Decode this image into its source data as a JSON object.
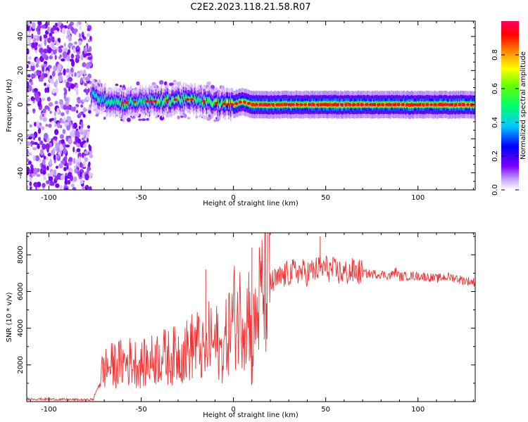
{
  "page_title": "C2E2.2023.118.21.58.R07",
  "chart_data": [
    {
      "type": "heatmap",
      "title": "C2E2.2023.118.21.58.R07",
      "xlabel": "Height of straight line (km)",
      "ylabel": "Frequency (Hz)",
      "xlim": [
        -112,
        131
      ],
      "ylim": [
        -50,
        49
      ],
      "x_ticks": [
        -100,
        -50,
        0,
        50,
        100
      ],
      "y_ticks": [
        -40,
        -20,
        0,
        20,
        40
      ],
      "colorbar": {
        "label": "Normalized spectral amplitude",
        "range": [
          0,
          1
        ],
        "ticks": [
          0.0,
          0.2,
          0.4,
          0.6,
          0.8
        ],
        "colors": [
          "#ffffff",
          "#d8b8ff",
          "#7b00ff",
          "#0000ff",
          "#00ccff",
          "#00ff66",
          "#66ff00",
          "#ffff00",
          "#ff8800",
          "#ff0000",
          "#ff0066"
        ]
      },
      "ridge": [
        {
          "x": -76,
          "freq": 5,
          "amp": 0.45
        },
        {
          "x": -70,
          "freq": 3,
          "amp": 0.45
        },
        {
          "x": -60,
          "freq": 1,
          "amp": 0.5
        },
        {
          "x": -50,
          "freq": 2,
          "amp": 0.5
        },
        {
          "x": -40,
          "freq": 2,
          "amp": 0.55
        },
        {
          "x": -30,
          "freq": 3,
          "amp": 0.6
        },
        {
          "x": -20,
          "freq": 3,
          "amp": 0.55
        },
        {
          "x": -12,
          "freq": 1,
          "amp": 0.6
        },
        {
          "x": 0,
          "freq": 0,
          "amp": 0.8
        },
        {
          "x": 5,
          "freq": 2,
          "amp": 0.8
        },
        {
          "x": 10,
          "freq": 0,
          "amp": 0.85
        },
        {
          "x": 50,
          "freq": 0,
          "amp": 0.9
        },
        {
          "x": 100,
          "freq": 0,
          "amp": 0.9
        },
        {
          "x": 131,
          "freq": 0,
          "amp": 0.9
        }
      ]
    },
    {
      "type": "line",
      "xlabel": "Height of straight line (km)",
      "ylabel": "SNR (10 * v/v)",
      "xlim": [
        -112,
        131
      ],
      "ylim": [
        0,
        9200
      ],
      "x_ticks": [
        -100,
        -50,
        0,
        50,
        100
      ],
      "y_ticks": [
        2000,
        4000,
        6000,
        8000
      ],
      "color": "#ee3333",
      "series": [
        {
          "name": "SNR",
          "x": [
            -112,
            -100,
            -90,
            -80,
            -76,
            -73,
            -72,
            -70,
            -65,
            -60,
            -55,
            -50,
            -45,
            -40,
            -35,
            -30,
            -25,
            -20,
            -15,
            -13,
            -11,
            -9,
            -7,
            -5,
            -3,
            -1,
            1,
            3,
            5,
            7,
            9,
            10,
            11,
            13,
            15,
            17,
            20,
            25,
            30,
            35,
            40,
            45,
            50,
            55,
            60,
            65,
            70,
            75,
            80,
            85,
            88,
            90,
            95,
            100,
            105,
            110,
            115,
            120,
            125,
            131
          ],
          "y": [
            150,
            130,
            110,
            100,
            120,
            900,
            1500,
            1800,
            2000,
            2100,
            2200,
            2000,
            2200,
            2500,
            2400,
            2600,
            2800,
            3200,
            2400,
            3500,
            3000,
            3300,
            2600,
            3000,
            3800,
            4300,
            4800,
            4600,
            5000,
            4500,
            5300,
            1300,
            3800,
            5000,
            5800,
            6100,
            6400,
            6700,
            7000,
            7100,
            7000,
            7200,
            7300,
            7100,
            7000,
            7100,
            7000,
            6950,
            6950,
            6850,
            7100,
            6800,
            6850,
            6850,
            6800,
            6700,
            6800,
            6750,
            6600,
            6500
          ]
        }
      ],
      "annotations": [
        {
          "x": -15,
          "y": 7200
        },
        {
          "x": 10,
          "y": 8400
        },
        {
          "x": 47,
          "y": 9000
        }
      ]
    }
  ]
}
